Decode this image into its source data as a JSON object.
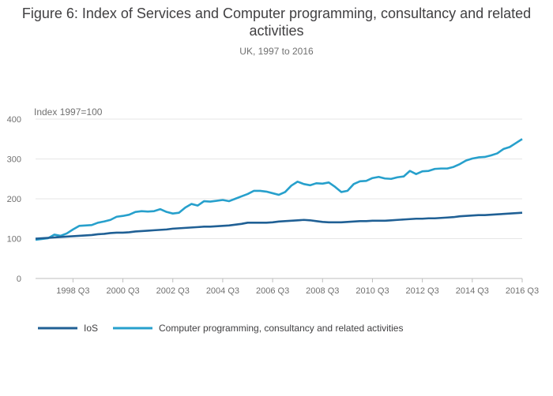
{
  "title": "Figure 6: Index of Services and Computer programming, consultancy and related activities",
  "subtitle": "UK, 1997 to 2016",
  "colors": {
    "ios": "#206095",
    "computer": "#27a0cc",
    "grid": "#e6e6e6",
    "axis": "#bebebe"
  },
  "chart_data": {
    "type": "line",
    "title": "Figure 6: Index of Services and Computer programming, consultancy and related activities",
    "subtitle": "UK, 1997 to 2016",
    "unit_label": "Index 1997=100",
    "xlabel": "",
    "ylabel": "",
    "ylim": [
      0,
      400
    ],
    "yticks": [
      0,
      100,
      200,
      300,
      400
    ],
    "x_tick_labels": [
      "1998 Q3",
      "2000 Q3",
      "2002 Q3",
      "2004 Q3",
      "2006 Q3",
      "2008 Q3",
      "2010 Q3",
      "2012 Q3",
      "2014 Q3",
      "2016 Q3"
    ],
    "x_tick_indices": [
      6,
      14,
      22,
      30,
      38,
      46,
      54,
      62,
      70,
      78
    ],
    "grid": true,
    "legend_position": "bottom-left",
    "x": [
      "1997 Q1",
      "1997 Q2",
      "1997 Q3",
      "1997 Q4",
      "1998 Q1",
      "1998 Q2",
      "1998 Q3",
      "1998 Q4",
      "1999 Q1",
      "1999 Q2",
      "1999 Q3",
      "1999 Q4",
      "2000 Q1",
      "2000 Q2",
      "2000 Q3",
      "2000 Q4",
      "2001 Q1",
      "2001 Q2",
      "2001 Q3",
      "2001 Q4",
      "2002 Q1",
      "2002 Q2",
      "2002 Q3",
      "2002 Q4",
      "2003 Q1",
      "2003 Q2",
      "2003 Q3",
      "2003 Q4",
      "2004 Q1",
      "2004 Q2",
      "2004 Q3",
      "2004 Q4",
      "2005 Q1",
      "2005 Q2",
      "2005 Q3",
      "2005 Q4",
      "2006 Q1",
      "2006 Q2",
      "2006 Q3",
      "2006 Q4",
      "2007 Q1",
      "2007 Q2",
      "2007 Q3",
      "2007 Q4",
      "2008 Q1",
      "2008 Q2",
      "2008 Q3",
      "2008 Q4",
      "2009 Q1",
      "2009 Q2",
      "2009 Q3",
      "2009 Q4",
      "2010 Q1",
      "2010 Q2",
      "2010 Q3",
      "2010 Q4",
      "2011 Q1",
      "2011 Q2",
      "2011 Q3",
      "2011 Q4",
      "2012 Q1",
      "2012 Q2",
      "2012 Q3",
      "2012 Q4",
      "2013 Q1",
      "2013 Q2",
      "2013 Q3",
      "2013 Q4",
      "2014 Q1",
      "2014 Q2",
      "2014 Q3",
      "2014 Q4",
      "2015 Q1",
      "2015 Q2",
      "2015 Q3",
      "2015 Q4",
      "2016 Q1",
      "2016 Q2",
      "2016 Q3"
    ],
    "series": [
      {
        "name": "IoS",
        "color": "#206095",
        "values": [
          100,
          101,
          102,
          103,
          104,
          105,
          106,
          107,
          108,
          109,
          111,
          112,
          114,
          115,
          115,
          116,
          118,
          119,
          120,
          121,
          122,
          123,
          125,
          126,
          127,
          128,
          129,
          130,
          130,
          131,
          132,
          133,
          135,
          137,
          140,
          140,
          140,
          140,
          141,
          143,
          144,
          145,
          146,
          147,
          146,
          144,
          142,
          141,
          141,
          141,
          142,
          143,
          144,
          144,
          145,
          145,
          145,
          146,
          147,
          148,
          149,
          150,
          150,
          151,
          151,
          152,
          153,
          154,
          156,
          157,
          158,
          159,
          159,
          160,
          161,
          162,
          163,
          164,
          165
        ]
      },
      {
        "name": "Computer programming, consultancy and related activities",
        "color": "#27a0cc",
        "values": [
          97,
          99,
          101,
          110,
          107,
          113,
          123,
          132,
          133,
          134,
          140,
          143,
          147,
          155,
          157,
          160,
          167,
          169,
          168,
          169,
          174,
          167,
          163,
          165,
          178,
          187,
          183,
          194,
          193,
          195,
          197,
          194,
          200,
          206,
          212,
          220,
          220,
          218,
          214,
          210,
          217,
          233,
          243,
          237,
          234,
          239,
          238,
          241,
          230,
          217,
          220,
          237,
          244,
          245,
          252,
          255,
          251,
          250,
          254,
          256,
          270,
          262,
          269,
          270,
          275,
          276,
          276,
          280,
          287,
          296,
          301,
          304,
          305,
          309,
          314,
          325,
          330,
          340,
          350
        ]
      }
    ]
  }
}
